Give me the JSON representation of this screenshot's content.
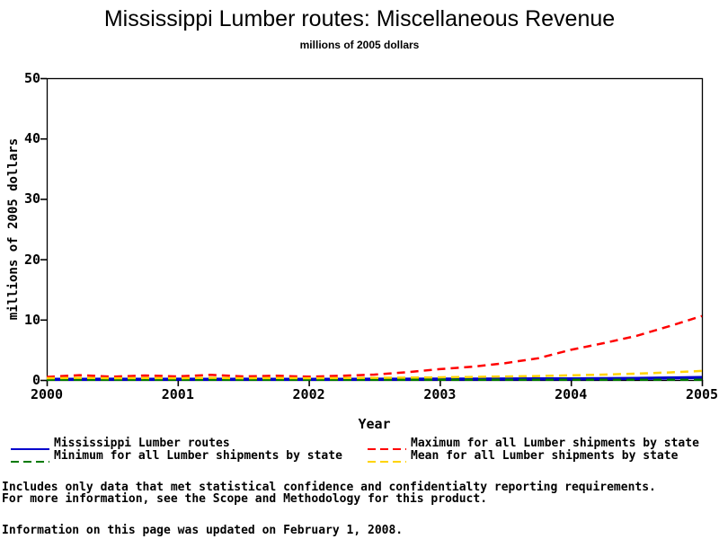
{
  "title": "Mississippi Lumber routes: Miscellaneous Revenue",
  "subtitle": "millions of 2005 dollars",
  "footnotes": {
    "line1": "Includes only data that met statistical confidence and confidentialty reporting requirements.",
    "line2": "For more information, see the Scope and Methodology for this product.",
    "updated": "Information on this page was updated on February 1, 2008."
  },
  "chart_data": {
    "type": "line",
    "title": "Mississippi Lumber routes: Miscellaneous Revenue",
    "subtitle": "millions of 2005 dollars",
    "xlabel": "Year",
    "ylabel": "millions of 2005 dollars",
    "xlim": [
      2000,
      2005
    ],
    "ylim": [
      0,
      50
    ],
    "xticks": [
      "2000",
      "2001",
      "2002",
      "2003",
      "2004",
      "2005"
    ],
    "xtick_values": [
      2000,
      2001,
      2002,
      2003,
      2004,
      2005
    ],
    "yticks": [
      "0",
      "10",
      "20",
      "30",
      "40",
      "50"
    ],
    "ytick_values": [
      0,
      10,
      20,
      30,
      40,
      50
    ],
    "grid": false,
    "legend_position": "bottom-two-columns",
    "frame_color": "#000000",
    "x": [
      2000,
      2000.25,
      2000.5,
      2000.75,
      2001,
      2001.25,
      2001.5,
      2001.75,
      2002,
      2002.25,
      2002.5,
      2002.75,
      2003,
      2003.25,
      2003.5,
      2003.75,
      2004,
      2004.25,
      2004.5,
      2004.75,
      2005
    ],
    "series": [
      {
        "name": "Mississippi Lumber routes",
        "color": "#0000CC",
        "style": "solid",
        "width": 3.5,
        "values": [
          0.12,
          0.1,
          0.13,
          0.1,
          0.14,
          0.11,
          0.13,
          0.1,
          0.12,
          0.11,
          0.13,
          0.14,
          0.15,
          0.15,
          0.17,
          0.18,
          0.2,
          0.22,
          0.25,
          0.32,
          0.4
        ]
      },
      {
        "name": "Minimum for all Lumber shipments by state",
        "color": "#007A00",
        "style": "dashed",
        "width": 2.5,
        "values": [
          0.04,
          0.05,
          0.04,
          0.05,
          0.04,
          0.05,
          0.04,
          0.05,
          0.04,
          0.05,
          0.05,
          0.05,
          0.05,
          0.05,
          0.05,
          0.05,
          0.05,
          0.05,
          0.05,
          0.05,
          0.05
        ]
      },
      {
        "name": "Maximum for all Lumber shipments by state",
        "color": "#FF0000",
        "style": "dashed",
        "width": 2.5,
        "values": [
          0.5,
          0.8,
          0.55,
          0.75,
          0.6,
          0.85,
          0.6,
          0.7,
          0.55,
          0.7,
          0.9,
          1.3,
          1.8,
          2.2,
          2.8,
          3.6,
          5.0,
          6.1,
          7.3,
          8.9,
          10.6
        ]
      },
      {
        "name": "Mean for all Lumber shipments by state",
        "color": "#FFD400",
        "style": "dashed",
        "width": 2.5,
        "values": [
          0.3,
          0.35,
          0.3,
          0.33,
          0.3,
          0.35,
          0.3,
          0.33,
          0.3,
          0.33,
          0.36,
          0.4,
          0.45,
          0.5,
          0.58,
          0.66,
          0.78,
          0.9,
          1.05,
          1.25,
          1.5
        ]
      }
    ]
  }
}
